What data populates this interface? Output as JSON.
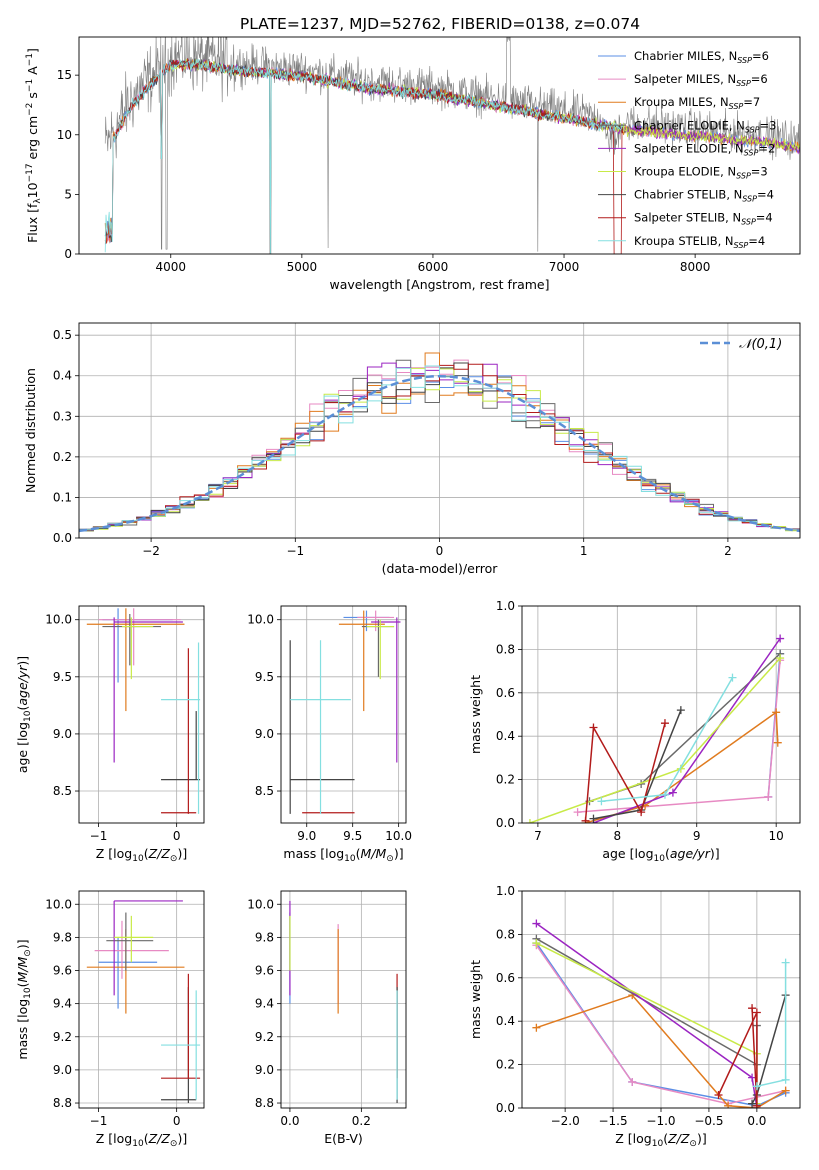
{
  "title": "PLATE=1237, MJD=52762, FIBERID=0138, z=0.074",
  "colors": {
    "chab_miles": "#5b8fe6",
    "salp_miles": "#e78ac3",
    "krou_miles": "#e07b1f",
    "chab_elodie": "#6a6a6a",
    "salp_elodie": "#9b25c2",
    "krou_elodie": "#c8ea47",
    "chab_stelib": "#444444",
    "salp_stelib": "#b21b1b",
    "krou_stelib": "#84dfe0",
    "data": "#808080",
    "normal": "#5b8fd6"
  },
  "chart_data": [
    {
      "type": "line",
      "id": "spectrum",
      "xlabel": "wavelength [Angstrom, rest frame]",
      "ylabel": "Flux [f_λ10^-17 erg cm^-2 s^-1 A^-1]",
      "xlim": [
        3300,
        8800
      ],
      "ylim": [
        0,
        18.2
      ],
      "xticks": [
        4000,
        5000,
        6000,
        7000,
        8000
      ],
      "yticks": [
        0,
        5,
        10,
        15
      ],
      "grid": false,
      "legend_position": "top-right",
      "envelope": [
        [
          3500,
          9.0
        ],
        [
          3700,
          13.0
        ],
        [
          3900,
          15.5
        ],
        [
          4000,
          16.5
        ],
        [
          4200,
          16.5
        ],
        [
          4500,
          16.0
        ],
        [
          5000,
          15.5
        ],
        [
          5500,
          14.5
        ],
        [
          6000,
          14.0
        ],
        [
          6500,
          13.0
        ],
        [
          7000,
          12.0
        ],
        [
          7500,
          11.0
        ],
        [
          8000,
          10.5
        ],
        [
          8500,
          10.0
        ],
        [
          8800,
          9.5
        ]
      ],
      "series": [
        {
          "name": "Chabrier MILES, N_SSP=6",
          "color": "chab_miles"
        },
        {
          "name": "Salpeter MILES, N_SSP=6",
          "color": "salp_miles"
        },
        {
          "name": "Kroupa MILES, N_SSP=7",
          "color": "krou_miles"
        },
        {
          "name": "Chabrier ELODIE, N_SSP=3",
          "color": "chab_elodie"
        },
        {
          "name": "Salpeter ELODIE, N_SSP=2",
          "color": "salp_elodie"
        },
        {
          "name": "Kroupa ELODIE, N_SSP=3",
          "color": "krou_elodie"
        },
        {
          "name": "Chabrier STELIB, N_SSP=4",
          "color": "chab_stelib"
        },
        {
          "name": "Salpeter STELIB, N_SSP=4",
          "color": "salp_stelib"
        },
        {
          "name": "Kroupa STELIB, N_SSP=4",
          "color": "krou_stelib"
        }
      ]
    },
    {
      "type": "line",
      "id": "residuals",
      "xlabel": "(data-model)/error",
      "ylabel": "Normed distribution",
      "xlim": [
        -2.5,
        2.5
      ],
      "ylim": [
        0,
        0.53
      ],
      "xticks": [
        -2,
        -1,
        0,
        1,
        2
      ],
      "yticks": [
        0.0,
        0.1,
        0.2,
        0.3,
        0.4,
        0.5
      ],
      "grid": true,
      "legend_position": "top-right",
      "reference": {
        "name": "𝒩(0,1)",
        "mean": 0,
        "sigma": 1
      },
      "bin_width": 0.1
    },
    {
      "type": "scatter",
      "id": "age_vs_Z",
      "xlabel": "Z [log10(Z/Z⊙)]",
      "ylabel": "age  [log10(age/yr)]",
      "xlim": [
        -1.25,
        0.35
      ],
      "ylim": [
        8.22,
        10.12
      ],
      "xticks": [
        -1,
        0
      ],
      "yticks": [
        8.5,
        9.0,
        9.5,
        10.0
      ],
      "grid": true,
      "points": [
        {
          "c": "chab_miles",
          "x": -0.75,
          "xe": [
            -0.95,
            -0.05
          ],
          "y": 10.0,
          "ye": [
            9.45,
            10.1
          ]
        },
        {
          "c": "salp_miles",
          "x": -0.55,
          "xe": [
            -1.0,
            0.05
          ],
          "y": 10.0,
          "ye": [
            9.6,
            10.1
          ]
        },
        {
          "c": "krou_miles",
          "x": -0.65,
          "xe": [
            -1.15,
            0.1
          ],
          "y": 9.96,
          "ye": [
            9.2,
            10.1
          ]
        },
        {
          "c": "chab_elodie",
          "x": -0.6,
          "xe": [
            -0.95,
            -0.2
          ],
          "y": 9.94,
          "ye": [
            9.6,
            10.05
          ]
        },
        {
          "c": "salp_elodie",
          "x": -0.8,
          "xe": [
            -0.8,
            0.08
          ],
          "y": 9.98,
          "ye": [
            8.75,
            10.02
          ]
        },
        {
          "c": "krou_elodie",
          "x": -0.58,
          "xe": [
            -0.7,
            -0.3
          ],
          "y": 9.94,
          "ye": [
            9.48,
            10.02
          ]
        },
        {
          "c": "chab_stelib",
          "x": 0.25,
          "xe": [
            -0.2,
            0.3
          ],
          "y": 8.6,
          "ye": [
            8.6,
            9.2
          ]
        },
        {
          "c": "salp_stelib",
          "x": 0.15,
          "xe": [
            -0.2,
            0.25
          ],
          "y": 8.31,
          "ye": [
            8.3,
            9.75
          ]
        },
        {
          "c": "krou_stelib",
          "x": 0.28,
          "xe": [
            -0.2,
            0.3
          ],
          "y": 9.3,
          "ye": [
            8.3,
            9.8
          ]
        }
      ]
    },
    {
      "type": "scatter",
      "id": "age_vs_mass",
      "xlabel": "mass [log10(M/M⊙)]",
      "ylabel": "",
      "xlim": [
        8.72,
        10.08
      ],
      "ylim": [
        8.22,
        10.12
      ],
      "xticks": [
        9.0,
        9.5,
        10.0
      ],
      "yticks": [
        8.5,
        9.0,
        9.5,
        10.0
      ],
      "grid": true,
      "points": [
        {
          "c": "chab_miles",
          "x": 9.65,
          "xe": [
            9.4,
            9.9
          ],
          "y": 10.02,
          "ye": [
            9.9,
            10.08
          ]
        },
        {
          "c": "salp_miles",
          "x": 9.75,
          "xe": [
            9.55,
            9.95
          ],
          "y": 10.02,
          "ye": [
            9.9,
            10.08
          ]
        },
        {
          "c": "krou_miles",
          "x": 9.62,
          "xe": [
            9.35,
            9.85
          ],
          "y": 9.96,
          "ye": [
            9.2,
            10.08
          ]
        },
        {
          "c": "chab_elodie",
          "x": 9.78,
          "xe": [
            9.6,
            9.95
          ],
          "y": 9.94,
          "ye": [
            9.5,
            10.0
          ]
        },
        {
          "c": "salp_elodie",
          "x": 9.98,
          "xe": [
            9.7,
            10.02
          ],
          "y": 9.98,
          "ye": [
            8.75,
            10.02
          ]
        },
        {
          "c": "krou_elodie",
          "x": 9.8,
          "xe": [
            9.65,
            9.95
          ],
          "y": 9.94,
          "ye": [
            9.48,
            10.0
          ]
        },
        {
          "c": "chab_stelib",
          "x": 8.82,
          "xe": [
            8.82,
            9.52
          ],
          "y": 8.6,
          "ye": [
            8.3,
            9.82
          ]
        },
        {
          "c": "salp_stelib",
          "x": 8.95,
          "xe": [
            8.95,
            9.52
          ],
          "y": 8.31,
          "ye": [
            8.31,
            8.31
          ]
        },
        {
          "c": "krou_stelib",
          "x": 9.15,
          "xe": [
            8.82,
            9.48
          ],
          "y": 9.3,
          "ye": [
            8.3,
            9.82
          ]
        }
      ]
    },
    {
      "type": "line",
      "id": "weight_vs_age",
      "xlabel": "age  [log10(age/yr)]",
      "ylabel": "mass weight",
      "xlim": [
        6.8,
        10.3
      ],
      "ylim": [
        0,
        1.0
      ],
      "xticks": [
        7,
        8,
        9,
        10
      ],
      "yticks": [
        0.0,
        0.2,
        0.4,
        0.6,
        0.8,
        1.0
      ],
      "grid": true,
      "series": [
        {
          "c": "chab_miles",
          "x": [
            9.9,
            10.05
          ],
          "y": [
            0.12,
            0.78
          ]
        },
        {
          "c": "salp_miles",
          "x": [
            7.5,
            9.9,
            10.05
          ],
          "y": [
            0.05,
            0.12,
            0.75
          ]
        },
        {
          "c": "krou_miles",
          "x": [
            7.6,
            8.35,
            10.0,
            10.02
          ],
          "y": [
            0.0,
            0.08,
            0.51,
            0.37
          ]
        },
        {
          "c": "chab_elodie",
          "x": [
            7.65,
            8.3,
            10.05
          ],
          "y": [
            0.1,
            0.18,
            0.78
          ]
        },
        {
          "c": "salp_elodie",
          "x": [
            7.7,
            8.7,
            10.05
          ],
          "y": [
            0.0,
            0.14,
            0.85
          ]
        },
        {
          "c": "krou_elodie",
          "x": [
            6.9,
            8.8,
            10.05
          ],
          "y": [
            0.0,
            0.25,
            0.76
          ]
        },
        {
          "c": "chab_stelib",
          "x": [
            7.7,
            8.3,
            8.8
          ],
          "y": [
            0.02,
            0.06,
            0.52
          ]
        },
        {
          "c": "salp_stelib",
          "x": [
            7.6,
            7.7,
            8.3,
            8.6
          ],
          "y": [
            0.01,
            0.44,
            0.05,
            0.46
          ]
        },
        {
          "c": "krou_stelib",
          "x": [
            7.8,
            8.6,
            9.45
          ],
          "y": [
            0.1,
            0.13,
            0.67
          ]
        }
      ]
    },
    {
      "type": "scatter",
      "id": "mass_vs_Z",
      "xlabel": "Z [log10(Z/Z⊙)]",
      "ylabel": "mass [log10(M/M⊙)]",
      "xlim": [
        -1.25,
        0.35
      ],
      "ylim": [
        8.77,
        10.08
      ],
      "xticks": [
        -1,
        0
      ],
      "yticks": [
        8.8,
        9.0,
        9.2,
        9.4,
        9.6,
        9.8,
        10.0
      ],
      "grid": true,
      "points": [
        {
          "c": "chab_miles",
          "x": -0.75,
          "xe": [
            -1.0,
            -0.25
          ],
          "y": 9.65,
          "ye": [
            9.37,
            9.8
          ]
        },
        {
          "c": "salp_miles",
          "x": -0.7,
          "xe": [
            -1.05,
            -0.1
          ],
          "y": 9.72,
          "ye": [
            9.55,
            9.9
          ]
        },
        {
          "c": "krou_miles",
          "x": -0.65,
          "xe": [
            -1.15,
            0.1
          ],
          "y": 9.62,
          "ye": [
            9.34,
            9.85
          ]
        },
        {
          "c": "chab_elodie",
          "x": -0.65,
          "xe": [
            -0.9,
            -0.3
          ],
          "y": 9.78,
          "ye": [
            9.6,
            9.95
          ]
        },
        {
          "c": "salp_elodie",
          "x": -0.8,
          "xe": [
            -0.8,
            0.08
          ],
          "y": 10.02,
          "ye": [
            9.45,
            10.02
          ]
        },
        {
          "c": "krou_elodie",
          "x": -0.58,
          "xe": [
            -0.8,
            -0.3
          ],
          "y": 9.8,
          "ye": [
            9.65,
            9.93
          ]
        },
        {
          "c": "chab_stelib",
          "x": 0.15,
          "xe": [
            -0.2,
            0.25
          ],
          "y": 8.82,
          "ye": [
            8.8,
            9.5
          ]
        },
        {
          "c": "salp_stelib",
          "x": 0.15,
          "xe": [
            -0.2,
            0.3
          ],
          "y": 8.95,
          "ye": [
            8.95,
            9.58
          ]
        },
        {
          "c": "krou_stelib",
          "x": 0.25,
          "xe": [
            -0.2,
            0.3
          ],
          "y": 9.15,
          "ye": [
            8.82,
            9.48
          ]
        }
      ]
    },
    {
      "type": "scatter",
      "id": "mass_vs_EBV",
      "xlabel": "E(B-V)",
      "ylabel": "",
      "xlim": [
        -0.025,
        0.325
      ],
      "ylim": [
        8.77,
        10.08
      ],
      "xticks": [
        0.0,
        0.2
      ],
      "yticks": [
        8.8,
        9.0,
        9.2,
        9.4,
        9.6,
        9.8,
        10.0
      ],
      "grid": true,
      "points": [
        {
          "c": "chab_miles",
          "x": 0.0,
          "ye": [
            9.4,
            9.95
          ]
        },
        {
          "c": "salp_elodie",
          "x": 0.0,
          "ye": [
            9.45,
            10.02
          ]
        },
        {
          "c": "krou_elodie",
          "x": 0.0,
          "ye": [
            9.6,
            9.93
          ]
        },
        {
          "c": "salp_miles",
          "x": 0.135,
          "ye": [
            9.4,
            9.88
          ]
        },
        {
          "c": "krou_miles",
          "x": 0.135,
          "ye": [
            9.34,
            9.85
          ]
        },
        {
          "c": "salp_stelib",
          "x": 0.3,
          "ye": [
            8.95,
            9.58
          ]
        },
        {
          "c": "chab_stelib",
          "x": 0.3,
          "ye": [
            8.8,
            9.5
          ]
        },
        {
          "c": "krou_stelib",
          "x": 0.3,
          "ye": [
            8.82,
            9.48
          ]
        }
      ]
    },
    {
      "type": "line",
      "id": "weight_vs_Z",
      "xlabel": "Z [log10(Z/Z⊙)]",
      "ylabel": "mass weight",
      "xlim": [
        -2.45,
        0.45
      ],
      "ylim": [
        0,
        1.0
      ],
      "xticks": [
        -2.0,
        -1.5,
        -1.0,
        -0.5,
        0.0
      ],
      "yticks": [
        0.0,
        0.2,
        0.4,
        0.6,
        0.8,
        1.0
      ],
      "grid": true,
      "series": [
        {
          "c": "chab_miles",
          "x": [
            -2.3,
            -1.3,
            0.0,
            0.3
          ],
          "y": [
            0.76,
            0.12,
            0.01,
            0.07
          ]
        },
        {
          "c": "salp_miles",
          "x": [
            -2.3,
            -1.3,
            -0.3,
            0.3
          ],
          "y": [
            0.75,
            0.12,
            0.02,
            0.08
          ]
        },
        {
          "c": "krou_miles",
          "x": [
            -2.3,
            -1.3,
            -0.3,
            0.0,
            0.3
          ],
          "y": [
            0.37,
            0.52,
            0.01,
            0.0,
            0.08
          ]
        },
        {
          "c": "chab_elodie",
          "x": [
            -2.3,
            0.0,
            0.0
          ],
          "y": [
            0.78,
            0.2,
            0.38
          ]
        },
        {
          "c": "salp_elodie",
          "x": [
            -2.3,
            -0.05,
            0.0
          ],
          "y": [
            0.85,
            0.14,
            0.0
          ]
        },
        {
          "c": "krou_elodie",
          "x": [
            -2.3,
            0.0,
            0.0
          ],
          "y": [
            0.76,
            0.25,
            0.02
          ]
        },
        {
          "c": "chab_stelib",
          "x": [
            -0.05,
            0.0,
            0.3
          ],
          "y": [
            0.02,
            0.06,
            0.52
          ]
        },
        {
          "c": "salp_stelib",
          "x": [
            -0.4,
            0.0,
            0.0,
            -0.05
          ],
          "y": [
            0.06,
            0.44,
            0.01,
            0.46
          ]
        },
        {
          "c": "krou_stelib",
          "x": [
            0.0,
            0.3,
            0.3
          ],
          "y": [
            0.1,
            0.13,
            0.67
          ]
        }
      ]
    }
  ]
}
